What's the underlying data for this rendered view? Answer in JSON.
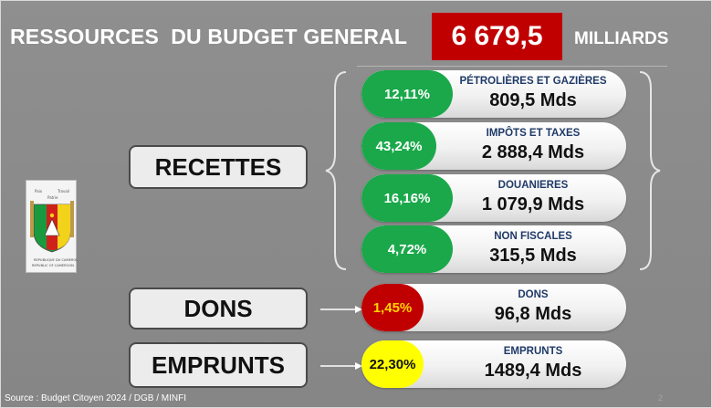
{
  "header": {
    "title": "RESSOURCES  DU BUDGET GENERAL",
    "total": "6 679,5",
    "unit": "MILLIARDS"
  },
  "categories": {
    "recettes": "RECETTES",
    "dons": "DONS",
    "emprunts": "EMPRUNTS"
  },
  "recettes_items": [
    {
      "percent": "12,11%",
      "caption": "PÉTROLIÈRES ET GAZIÈRES",
      "amount": "809,5 Mds"
    },
    {
      "percent": "43,24%",
      "caption": "IMPÔTS ET TAXES",
      "amount": "2 888,4 Mds"
    },
    {
      "percent": "16,16%",
      "caption": "DOUANIERES",
      "amount": "1 079,9 Mds"
    },
    {
      "percent": "4,72%",
      "caption": "NON FISCALES",
      "amount": "315,5 Mds"
    }
  ],
  "dons_item": {
    "percent": "1,45%",
    "caption": "DONS",
    "amount": "96,8 Mds"
  },
  "emprunts_item": {
    "percent": "22,30%",
    "caption": "EMPRUNTS",
    "amount": "1489,4 Mds"
  },
  "footer": {
    "source": "Source : Budget Citoyen 2024 / DGB / MINFI",
    "page": "2"
  },
  "colors": {
    "total_bg": "#c00000",
    "recettes_green": "#1aa84a",
    "dons_red": "#c00000",
    "dons_text": "#ffd400",
    "emprunts_yellow": "#ffff00",
    "caption_blue": "#1f3a68"
  },
  "emblem": "cameroon-coat-of-arms"
}
